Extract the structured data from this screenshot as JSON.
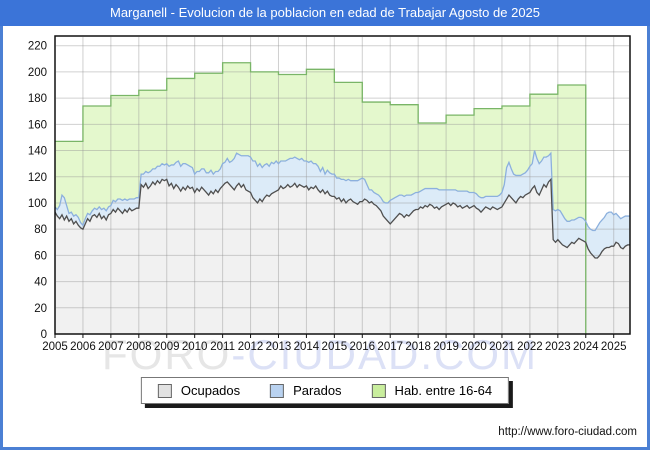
{
  "window": {
    "title": "Marganell - Evolucion de la poblacion en edad de Trabajar Agosto de 2025"
  },
  "watermark": {
    "left": "FORO",
    "right": "-CIUDAD.COM"
  },
  "footer": {
    "url": "http://www.foro-ciudad.com"
  },
  "legend": {
    "items": [
      {
        "label": "Ocupados",
        "color": "#e2e2e2"
      },
      {
        "label": "Parados",
        "color": "#b9d2f0"
      },
      {
        "label": "Hab. entre 16-64",
        "color": "#c9ee9d"
      }
    ]
  },
  "colors": {
    "titlebar": "#3b74d8",
    "frame": "#4b80d4",
    "grid": "rgba(150,150,150,0.45)",
    "hab_fill": "#e4f8cd",
    "hab_line": "#79b567",
    "par_fill": "#dcebf8",
    "par_line": "#8cb0dd",
    "ocu_fill": "#f1f1f1",
    "ocu_line": "#4f4f4f",
    "watermark_left": "#e6e6e6",
    "watermark_right": "#dce1f6",
    "axis": "#111111"
  },
  "chart_data": {
    "type": "area",
    "title": "Marganell - Evolucion de la poblacion en edad de Trabajar Agosto de 2025",
    "grid": true,
    "legend_position": "bottom",
    "x_axis": {
      "min": 2005,
      "max": 2025.5833,
      "ticks": [
        2005,
        2006,
        2007,
        2008,
        2009,
        2010,
        2011,
        2012,
        2013,
        2014,
        2015,
        2016,
        2017,
        2018,
        2019,
        2020,
        2021,
        2022,
        2023,
        2024,
        2025
      ]
    },
    "y_axis": {
      "min": 0,
      "max": 227,
      "ticks": [
        0,
        20,
        40,
        60,
        80,
        100,
        120,
        140,
        160,
        180,
        200,
        220
      ]
    },
    "series": [
      {
        "name": "Hab. entre 16-64",
        "style": "annual-step",
        "start_year": 2005,
        "end_year": 2023,
        "values": [
          147,
          174,
          182,
          186,
          195,
          199,
          207,
          200,
          198,
          202,
          192,
          177,
          175,
          161,
          167,
          172,
          174,
          183,
          190
        ]
      },
      {
        "name": "Ocupados",
        "style": "monthly",
        "start_year": 2005,
        "values": [
          93,
          90,
          88,
          91,
          87,
          90,
          86,
          88,
          84,
          86,
          83,
          81,
          80,
          84,
          88,
          86,
          90,
          91,
          89,
          92,
          88,
          90,
          87,
          91,
          92,
          95,
          93,
          96,
          94,
          92,
          95,
          93,
          96,
          94,
          95,
          96,
          96,
          114,
          112,
          115,
          111,
          113,
          116,
          114,
          117,
          115,
          118,
          117,
          118,
          113,
          115,
          111,
          114,
          112,
          109,
          112,
          110,
          113,
          111,
          112,
          108,
          111,
          109,
          112,
          110,
          108,
          106,
          109,
          107,
          110,
          108,
          111,
          113,
          115,
          116,
          114,
          112,
          110,
          113,
          115,
          112,
          114,
          110,
          109,
          108,
          104,
          102,
          100,
          103,
          101,
          104,
          106,
          105,
          107,
          108,
          109,
          110,
          113,
          111,
          112,
          114,
          112,
          113,
          115,
          112,
          114,
          113,
          112,
          113,
          110,
          112,
          111,
          113,
          110,
          108,
          110,
          107,
          109,
          106,
          105,
          105,
          103,
          104,
          101,
          103,
          100,
          102,
          103,
          101,
          100,
          99,
          101,
          101,
          103,
          102,
          100,
          101,
          99,
          98,
          96,
          94,
          90,
          88,
          86,
          84,
          86,
          88,
          90,
          92,
          91,
          89,
          91,
          90,
          92,
          94,
          95,
          95,
          97,
          96,
          98,
          97,
          99,
          98,
          96,
          97,
          95,
          97,
          98,
          99,
          100,
          98,
          100,
          99,
          97,
          98,
          96,
          97,
          98,
          96,
          97,
          98,
          96,
          95,
          93,
          95,
          97,
          96,
          95,
          97,
          96,
          95,
          96,
          97,
          100,
          103,
          106,
          104,
          102,
          100,
          103,
          105,
          104,
          106,
          107,
          108,
          111,
          113,
          108,
          106,
          110,
          114,
          112,
          116,
          118,
          72,
          70,
          72,
          70,
          68,
          67,
          66,
          68,
          70,
          69,
          71,
          73,
          72,
          71,
          70,
          65,
          62,
          60,
          58,
          58,
          60,
          63,
          65,
          66,
          66,
          67,
          67,
          70,
          69,
          66,
          65,
          67,
          68,
          68
        ]
      },
      {
        "name": "Parados",
        "style": "monthly-stacked-on-ocupados",
        "start_year": 2005,
        "values": [
          4,
          5,
          10,
          15,
          17,
          8,
          6,
          5,
          6,
          5,
          6,
          4,
          3,
          4,
          4,
          5,
          4,
          5,
          6,
          5,
          7,
          6,
          7,
          6,
          6,
          7,
          8,
          7,
          9,
          10,
          8,
          9,
          7,
          9,
          8,
          8,
          8,
          8,
          10,
          9,
          12,
          11,
          10,
          12,
          11,
          13,
          12,
          12,
          12,
          15,
          14,
          18,
          17,
          20,
          19,
          18,
          20,
          16,
          17,
          15,
          14,
          13,
          15,
          14,
          16,
          15,
          17,
          16,
          15,
          14,
          16,
          15,
          17,
          16,
          18,
          17,
          20,
          24,
          25,
          22,
          24,
          22,
          26,
          27,
          27,
          28,
          30,
          28,
          27,
          26,
          25,
          24,
          23,
          24,
          22,
          23,
          20,
          19,
          21,
          20,
          19,
          22,
          21,
          20,
          22,
          19,
          21,
          20,
          19,
          21,
          20,
          19,
          17,
          18,
          16,
          17,
          15,
          16,
          17,
          17,
          17,
          16,
          15,
          17,
          15,
          17,
          16,
          14,
          16,
          17,
          18,
          17,
          18,
          15,
          12,
          10,
          9,
          9,
          9,
          10,
          10,
          11,
          12,
          14,
          18,
          17,
          16,
          15,
          14,
          15,
          16,
          15,
          16,
          14,
          13,
          13,
          13,
          12,
          14,
          13,
          14,
          12,
          13,
          15,
          14,
          15,
          13,
          12,
          11,
          10,
          12,
          10,
          11,
          12,
          11,
          13,
          12,
          11,
          12,
          11,
          10,
          11,
          10,
          11,
          9,
          8,
          9,
          10,
          8,
          9,
          10,
          10,
          11,
          14,
          24,
          25,
          22,
          20,
          21,
          18,
          16,
          18,
          17,
          18,
          20,
          19,
          27,
          26,
          24,
          22,
          21,
          23,
          20,
          20,
          23,
          24,
          23,
          24,
          23,
          21,
          20,
          18,
          17,
          18,
          17,
          16,
          17,
          17,
          16,
          17,
          18,
          19,
          21,
          24,
          25,
          24,
          24,
          26,
          27,
          26,
          24,
          22,
          21,
          22,
          24,
          23,
          22,
          22
        ]
      }
    ]
  }
}
